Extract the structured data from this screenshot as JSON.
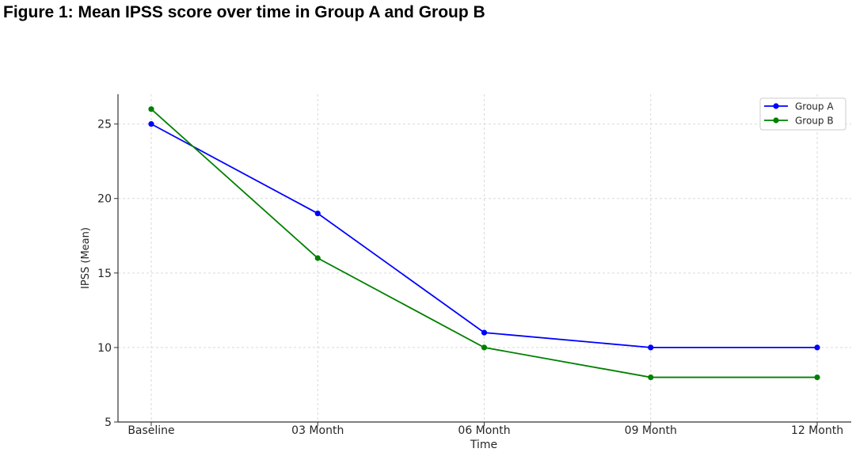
{
  "figure": {
    "title": "Figure 1: Mean IPSS score over time in Group A and Group B"
  },
  "chart_data": {
    "type": "line",
    "categories": [
      "Baseline",
      "03 Month",
      "06 Month",
      "09 Month",
      "12 Month"
    ],
    "series": [
      {
        "name": "Group A",
        "values": [
          25,
          19,
          11,
          10,
          10
        ],
        "color": "#0000ff"
      },
      {
        "name": "Group B",
        "values": [
          26,
          16,
          10,
          8,
          8
        ],
        "color": "#008000"
      }
    ],
    "title": "",
    "xlabel": "Time",
    "ylabel": "IPSS (Mean)",
    "ylim": [
      5,
      27
    ],
    "yticks": [
      5,
      10,
      15,
      20,
      25
    ],
    "grid": true,
    "legend_position": "top-right"
  }
}
